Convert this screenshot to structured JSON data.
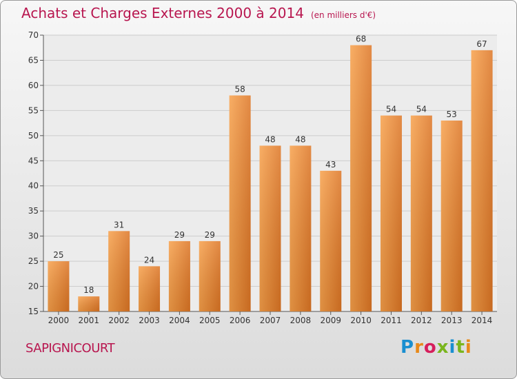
{
  "header": {
    "title": "Achats et Charges Externes 2000 à 2014",
    "subtitle": "(en milliers d'€)"
  },
  "footer": {
    "commune": "SAPIGNICOURT",
    "logo": "Proxiti"
  },
  "colors": {
    "title": "#b8164f",
    "bar_light": "#f7a04a",
    "bar_dark": "#dd7524"
  },
  "chart_data": {
    "type": "bar",
    "title": "Achats et Charges Externes 2000 à 2014",
    "subtitle": "(en milliers d'€)",
    "categories": [
      "2000",
      "2001",
      "2002",
      "2003",
      "2004",
      "2005",
      "2006",
      "2007",
      "2008",
      "2009",
      "2010",
      "2011",
      "2012",
      "2013",
      "2014"
    ],
    "values": [
      25,
      18,
      31,
      24,
      29,
      29,
      58,
      48,
      48,
      43,
      68,
      54,
      54,
      53,
      67
    ],
    "ylim": [
      15,
      70
    ],
    "yticks": [
      15,
      20,
      25,
      30,
      35,
      40,
      45,
      50,
      55,
      60,
      65,
      70
    ],
    "grid": true,
    "data_labels": true
  }
}
